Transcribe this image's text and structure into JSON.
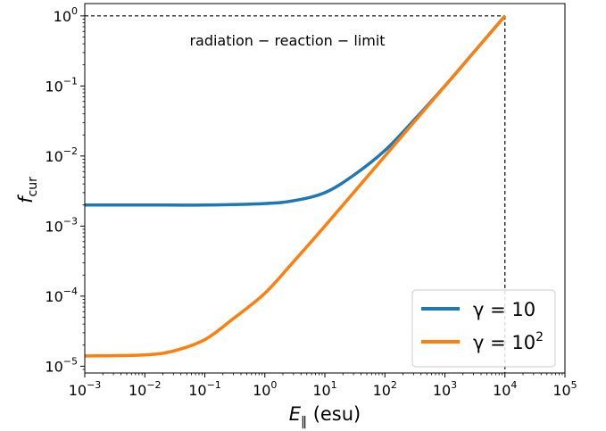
{
  "chart_data": {
    "type": "line",
    "title": "",
    "xlabel": "E_‖ (esu)",
    "ylabel": "f_cur",
    "x_scale": "log",
    "y_scale": "log",
    "xlim": [
      0.001,
      100000
    ],
    "ylim": [
      8e-06,
      1.5
    ],
    "x_ticks": [
      {
        "base": "10",
        "exp": "−3",
        "value": 0.001
      },
      {
        "base": "10",
        "exp": "−2",
        "value": 0.01
      },
      {
        "base": "10",
        "exp": "−1",
        "value": 0.1
      },
      {
        "base": "10",
        "exp": "0",
        "value": 1
      },
      {
        "base": "10",
        "exp": "1",
        "value": 10
      },
      {
        "base": "10",
        "exp": "2",
        "value": 100
      },
      {
        "base": "10",
        "exp": "3",
        "value": 1000
      },
      {
        "base": "10",
        "exp": "4",
        "value": 10000
      },
      {
        "base": "10",
        "exp": "5",
        "value": 100000
      }
    ],
    "y_ticks": [
      {
        "base": "10",
        "exp": "−5",
        "value": 1e-05
      },
      {
        "base": "10",
        "exp": "−4",
        "value": 0.0001
      },
      {
        "base": "10",
        "exp": "−3",
        "value": 0.001
      },
      {
        "base": "10",
        "exp": "−2",
        "value": 0.01
      },
      {
        "base": "10",
        "exp": "−1",
        "value": 0.1
      },
      {
        "base": "10",
        "exp": "0",
        "value": 1
      }
    ],
    "series": [
      {
        "name": "γ = 10",
        "name_base": "γ = 10",
        "name_exp": "",
        "color": "#1f77b4",
        "x": [
          0.001,
          0.01,
          0.1,
          1,
          3,
          10,
          30,
          100,
          300,
          1000,
          3000,
          10000
        ],
        "y": [
          0.002,
          0.002,
          0.002,
          0.0021,
          0.0023,
          0.003,
          0.0053,
          0.012,
          0.032,
          0.1,
          0.3,
          1
        ]
      },
      {
        "name": "γ = 10^2",
        "name_base": "γ = 10",
        "name_exp": "2",
        "color": "#ff7f0e",
        "x": [
          0.001,
          0.01,
          0.03,
          0.1,
          0.3,
          1,
          3,
          10,
          100,
          1000,
          10000
        ],
        "y": [
          1.4e-05,
          1.45e-05,
          1.65e-05,
          2.4e-05,
          4.8e-05,
          0.00011,
          0.00031,
          0.001,
          0.01,
          0.1,
          1
        ]
      }
    ],
    "annotations": [
      {
        "text": "radiation − reaction − limit"
      }
    ],
    "reference_lines": [
      {
        "orientation": "horizontal",
        "value": 1,
        "style": "dashed"
      },
      {
        "orientation": "vertical",
        "value": 10000,
        "style": "dashed"
      }
    ],
    "legend": "bottom-right",
    "grid": false
  }
}
